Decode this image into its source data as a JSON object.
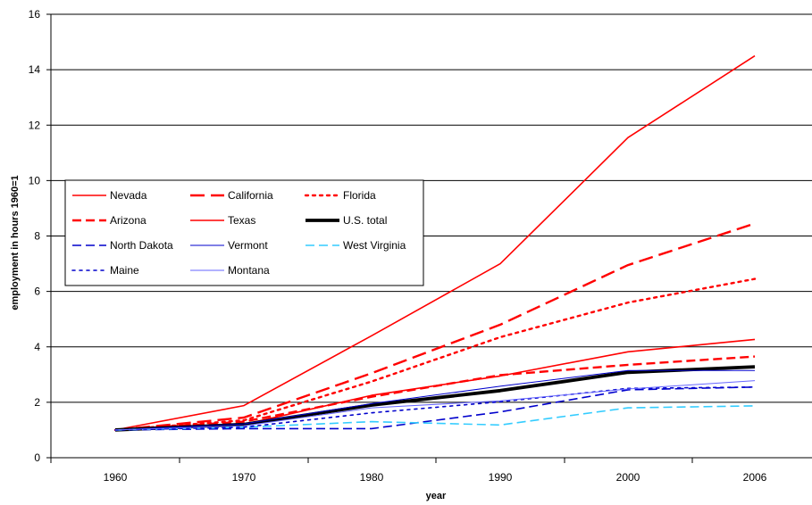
{
  "chart_data": {
    "type": "line",
    "title": "",
    "xlabel": "year",
    "ylabel": "employment in hours 1960=1",
    "x": [
      "1960",
      "1970",
      "1980",
      "1990",
      "2000",
      "2006"
    ],
    "ylim": [
      0,
      16
    ],
    "yticks": [
      "0",
      "2",
      "4",
      "6",
      "8",
      "10",
      "12",
      "14",
      "16"
    ],
    "grid": "horizontal",
    "legend_placement": "left",
    "series": [
      {
        "name": "Nevada",
        "color": "#ff0000",
        "style": "solid",
        "width": "medium",
        "values": [
          1.0,
          1.88,
          4.4,
          7.0,
          11.55,
          14.5
        ]
      },
      {
        "name": "California",
        "color": "#ff0000",
        "style": "long-dash",
        "width": "thick",
        "values": [
          1.0,
          1.45,
          3.05,
          4.8,
          6.95,
          8.45
        ]
      },
      {
        "name": "Florida",
        "color": "#ff0000",
        "style": "dotted",
        "width": "thick",
        "values": [
          1.0,
          1.35,
          2.75,
          4.35,
          5.6,
          6.45
        ]
      },
      {
        "name": "Arizona",
        "color": "#ff0000",
        "style": "dashed",
        "width": "thick",
        "values": [
          1.0,
          1.3,
          2.2,
          2.98,
          3.35,
          3.65
        ]
      },
      {
        "name": "Texas",
        "color": "#ff0000",
        "style": "solid",
        "width": "medium",
        "values": [
          1.0,
          1.2,
          2.25,
          2.95,
          3.82,
          4.27
        ]
      },
      {
        "name": "U.S. total",
        "color": "#000000",
        "style": "solid",
        "width": "extra-thick",
        "values": [
          1.0,
          1.2,
          1.9,
          2.42,
          3.08,
          3.28
        ]
      },
      {
        "name": "North Dakota",
        "color": "#0000cc",
        "style": "dashed",
        "width": "medium",
        "values": [
          1.0,
          1.05,
          1.05,
          1.65,
          2.45,
          2.55
        ]
      },
      {
        "name": "Vermont",
        "color": "#0000cc",
        "style": "solid",
        "width": "thin",
        "values": [
          1.0,
          1.22,
          1.95,
          2.58,
          3.15,
          3.15
        ]
      },
      {
        "name": "West Virginia",
        "color": "#33ccff",
        "style": "dashed",
        "width": "medium",
        "values": [
          1.0,
          1.1,
          1.3,
          1.18,
          1.8,
          1.87
        ]
      },
      {
        "name": "Maine",
        "color": "#0000cc",
        "style": "dotted",
        "width": "medium",
        "values": [
          1.0,
          1.1,
          1.62,
          2.02,
          2.5,
          2.55
        ]
      },
      {
        "name": "Montana",
        "color": "#6666ff",
        "style": "solid",
        "width": "thin",
        "values": [
          1.0,
          1.15,
          1.8,
          2.05,
          2.48,
          2.78
        ]
      }
    ]
  }
}
